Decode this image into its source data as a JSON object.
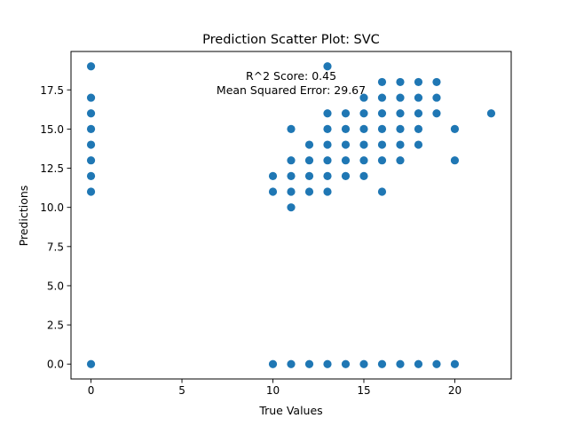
{
  "chart_data": {
    "type": "scatter",
    "title": "Prediction Scatter Plot: SVC",
    "xlabel": "True Values",
    "ylabel": "Predictions",
    "xlim": [
      -1.1,
      23.1
    ],
    "ylim": [
      -0.95,
      19.95
    ],
    "xticks": [
      0,
      5,
      10,
      15,
      20
    ],
    "yticks": [
      0.0,
      2.5,
      5.0,
      7.5,
      10.0,
      12.5,
      15.0,
      17.5
    ],
    "xtick_labels": [
      "0",
      "5",
      "10",
      "15",
      "20"
    ],
    "ytick_labels": [
      "0.0",
      "2.5",
      "5.0",
      "7.5",
      "10.0",
      "12.5",
      "15.0",
      "17.5"
    ],
    "grid": false,
    "marker_color": "#1f77b4",
    "annotations": [
      "R^2 Score: 0.45",
      "Mean Squared Error: 29.67"
    ],
    "points": [
      [
        0,
        19
      ],
      [
        0,
        17
      ],
      [
        0,
        16
      ],
      [
        0,
        15
      ],
      [
        0,
        14
      ],
      [
        0,
        13
      ],
      [
        0,
        12
      ],
      [
        0,
        11
      ],
      [
        0,
        0
      ],
      [
        10,
        12
      ],
      [
        10,
        11
      ],
      [
        10,
        0
      ],
      [
        11,
        15
      ],
      [
        11,
        13
      ],
      [
        11,
        12
      ],
      [
        11,
        11
      ],
      [
        11,
        10
      ],
      [
        11,
        0
      ],
      [
        12,
        14
      ],
      [
        12,
        13
      ],
      [
        12,
        12
      ],
      [
        12,
        11
      ],
      [
        12,
        0
      ],
      [
        13,
        19
      ],
      [
        13,
        16
      ],
      [
        13,
        15
      ],
      [
        13,
        14
      ],
      [
        13,
        13
      ],
      [
        13,
        12
      ],
      [
        13,
        11
      ],
      [
        13,
        0
      ],
      [
        14,
        16
      ],
      [
        14,
        15
      ],
      [
        14,
        14
      ],
      [
        14,
        13
      ],
      [
        14,
        12
      ],
      [
        14,
        0
      ],
      [
        15,
        17
      ],
      [
        15,
        16
      ],
      [
        15,
        15
      ],
      [
        15,
        14
      ],
      [
        15,
        13
      ],
      [
        15,
        12
      ],
      [
        15,
        0
      ],
      [
        16,
        18
      ],
      [
        16,
        17
      ],
      [
        16,
        16
      ],
      [
        16,
        15
      ],
      [
        16,
        14
      ],
      [
        16,
        13
      ],
      [
        16,
        11
      ],
      [
        16,
        0
      ],
      [
        17,
        18
      ],
      [
        17,
        17
      ],
      [
        17,
        16
      ],
      [
        17,
        15
      ],
      [
        17,
        14
      ],
      [
        17,
        13
      ],
      [
        17,
        0
      ],
      [
        18,
        18
      ],
      [
        18,
        17
      ],
      [
        18,
        16
      ],
      [
        18,
        15
      ],
      [
        18,
        14
      ],
      [
        18,
        0
      ],
      [
        19,
        18
      ],
      [
        19,
        17
      ],
      [
        19,
        16
      ],
      [
        19,
        0
      ],
      [
        20,
        15
      ],
      [
        20,
        13
      ],
      [
        20,
        0
      ],
      [
        22,
        16
      ]
    ]
  }
}
